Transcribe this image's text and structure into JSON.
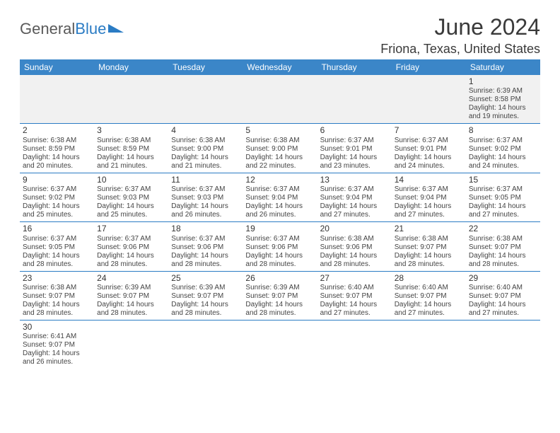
{
  "brand": {
    "text1": "General",
    "text2": "Blue"
  },
  "title": "June 2024",
  "location": "Friona, Texas, United States",
  "colors": {
    "header_bg": "#3b86c8",
    "header_text": "#ffffff",
    "cell_border": "#2b7cc4",
    "alt_bg": "#f1f1f1",
    "text": "#444444",
    "title_text": "#3a3a3a",
    "logo_gray": "#5a5a5a",
    "logo_blue": "#2b7cc4"
  },
  "weekdays": [
    "Sunday",
    "Monday",
    "Tuesday",
    "Wednesday",
    "Thursday",
    "Friday",
    "Saturday"
  ],
  "weeks": [
    [
      null,
      null,
      null,
      null,
      null,
      null,
      {
        "n": "1",
        "sr": "Sunrise: 6:39 AM",
        "ss": "Sunset: 8:58 PM",
        "d1": "Daylight: 14 hours",
        "d2": "and 19 minutes."
      }
    ],
    [
      {
        "n": "2",
        "sr": "Sunrise: 6:38 AM",
        "ss": "Sunset: 8:59 PM",
        "d1": "Daylight: 14 hours",
        "d2": "and 20 minutes."
      },
      {
        "n": "3",
        "sr": "Sunrise: 6:38 AM",
        "ss": "Sunset: 8:59 PM",
        "d1": "Daylight: 14 hours",
        "d2": "and 21 minutes."
      },
      {
        "n": "4",
        "sr": "Sunrise: 6:38 AM",
        "ss": "Sunset: 9:00 PM",
        "d1": "Daylight: 14 hours",
        "d2": "and 21 minutes."
      },
      {
        "n": "5",
        "sr": "Sunrise: 6:38 AM",
        "ss": "Sunset: 9:00 PM",
        "d1": "Daylight: 14 hours",
        "d2": "and 22 minutes."
      },
      {
        "n": "6",
        "sr": "Sunrise: 6:37 AM",
        "ss": "Sunset: 9:01 PM",
        "d1": "Daylight: 14 hours",
        "d2": "and 23 minutes."
      },
      {
        "n": "7",
        "sr": "Sunrise: 6:37 AM",
        "ss": "Sunset: 9:01 PM",
        "d1": "Daylight: 14 hours",
        "d2": "and 24 minutes."
      },
      {
        "n": "8",
        "sr": "Sunrise: 6:37 AM",
        "ss": "Sunset: 9:02 PM",
        "d1": "Daylight: 14 hours",
        "d2": "and 24 minutes."
      }
    ],
    [
      {
        "n": "9",
        "sr": "Sunrise: 6:37 AM",
        "ss": "Sunset: 9:02 PM",
        "d1": "Daylight: 14 hours",
        "d2": "and 25 minutes."
      },
      {
        "n": "10",
        "sr": "Sunrise: 6:37 AM",
        "ss": "Sunset: 9:03 PM",
        "d1": "Daylight: 14 hours",
        "d2": "and 25 minutes."
      },
      {
        "n": "11",
        "sr": "Sunrise: 6:37 AM",
        "ss": "Sunset: 9:03 PM",
        "d1": "Daylight: 14 hours",
        "d2": "and 26 minutes."
      },
      {
        "n": "12",
        "sr": "Sunrise: 6:37 AM",
        "ss": "Sunset: 9:04 PM",
        "d1": "Daylight: 14 hours",
        "d2": "and 26 minutes."
      },
      {
        "n": "13",
        "sr": "Sunrise: 6:37 AM",
        "ss": "Sunset: 9:04 PM",
        "d1": "Daylight: 14 hours",
        "d2": "and 27 minutes."
      },
      {
        "n": "14",
        "sr": "Sunrise: 6:37 AM",
        "ss": "Sunset: 9:04 PM",
        "d1": "Daylight: 14 hours",
        "d2": "and 27 minutes."
      },
      {
        "n": "15",
        "sr": "Sunrise: 6:37 AM",
        "ss": "Sunset: 9:05 PM",
        "d1": "Daylight: 14 hours",
        "d2": "and 27 minutes."
      }
    ],
    [
      {
        "n": "16",
        "sr": "Sunrise: 6:37 AM",
        "ss": "Sunset: 9:05 PM",
        "d1": "Daylight: 14 hours",
        "d2": "and 28 minutes."
      },
      {
        "n": "17",
        "sr": "Sunrise: 6:37 AM",
        "ss": "Sunset: 9:06 PM",
        "d1": "Daylight: 14 hours",
        "d2": "and 28 minutes."
      },
      {
        "n": "18",
        "sr": "Sunrise: 6:37 AM",
        "ss": "Sunset: 9:06 PM",
        "d1": "Daylight: 14 hours",
        "d2": "and 28 minutes."
      },
      {
        "n": "19",
        "sr": "Sunrise: 6:37 AM",
        "ss": "Sunset: 9:06 PM",
        "d1": "Daylight: 14 hours",
        "d2": "and 28 minutes."
      },
      {
        "n": "20",
        "sr": "Sunrise: 6:38 AM",
        "ss": "Sunset: 9:06 PM",
        "d1": "Daylight: 14 hours",
        "d2": "and 28 minutes."
      },
      {
        "n": "21",
        "sr": "Sunrise: 6:38 AM",
        "ss": "Sunset: 9:07 PM",
        "d1": "Daylight: 14 hours",
        "d2": "and 28 minutes."
      },
      {
        "n": "22",
        "sr": "Sunrise: 6:38 AM",
        "ss": "Sunset: 9:07 PM",
        "d1": "Daylight: 14 hours",
        "d2": "and 28 minutes."
      }
    ],
    [
      {
        "n": "23",
        "sr": "Sunrise: 6:38 AM",
        "ss": "Sunset: 9:07 PM",
        "d1": "Daylight: 14 hours",
        "d2": "and 28 minutes."
      },
      {
        "n": "24",
        "sr": "Sunrise: 6:39 AM",
        "ss": "Sunset: 9:07 PM",
        "d1": "Daylight: 14 hours",
        "d2": "and 28 minutes."
      },
      {
        "n": "25",
        "sr": "Sunrise: 6:39 AM",
        "ss": "Sunset: 9:07 PM",
        "d1": "Daylight: 14 hours",
        "d2": "and 28 minutes."
      },
      {
        "n": "26",
        "sr": "Sunrise: 6:39 AM",
        "ss": "Sunset: 9:07 PM",
        "d1": "Daylight: 14 hours",
        "d2": "and 28 minutes."
      },
      {
        "n": "27",
        "sr": "Sunrise: 6:40 AM",
        "ss": "Sunset: 9:07 PM",
        "d1": "Daylight: 14 hours",
        "d2": "and 27 minutes."
      },
      {
        "n": "28",
        "sr": "Sunrise: 6:40 AM",
        "ss": "Sunset: 9:07 PM",
        "d1": "Daylight: 14 hours",
        "d2": "and 27 minutes."
      },
      {
        "n": "29",
        "sr": "Sunrise: 6:40 AM",
        "ss": "Sunset: 9:07 PM",
        "d1": "Daylight: 14 hours",
        "d2": "and 27 minutes."
      }
    ],
    [
      {
        "n": "30",
        "sr": "Sunrise: 6:41 AM",
        "ss": "Sunset: 9:07 PM",
        "d1": "Daylight: 14 hours",
        "d2": "and 26 minutes."
      },
      null,
      null,
      null,
      null,
      null,
      null
    ]
  ]
}
